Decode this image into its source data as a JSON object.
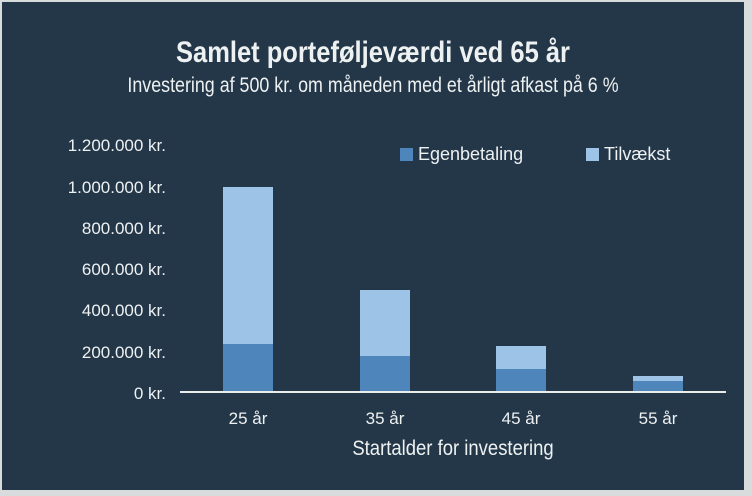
{
  "colors": {
    "page_border": "#d9dcdc",
    "panel_background": "#233748",
    "text": "#eef1f2",
    "axis_line": "#e9eced"
  },
  "header": {
    "title": "Samlet porteføljeværdi ved 65 år",
    "subtitle": "Investering af 500 kr. om måneden med et årligt afkast på 6 %"
  },
  "chart_data": {
    "type": "bar",
    "stacked": true,
    "title": "Samlet porteføljeværdi ved 65 år",
    "subtitle": "Investering af 500 kr. om måneden med et årligt afkast på 6 %",
    "categories": [
      "25 år",
      "35 år",
      "45 år",
      "55 år"
    ],
    "series": [
      {
        "name": "Egenbetaling",
        "color": "#4e86bc",
        "values": [
          240000,
          180000,
          120000,
          60000
        ]
      },
      {
        "name": "Tilvækst",
        "color": "#9dc3e6",
        "values": [
          760000,
          320000,
          110000,
          22000
        ]
      }
    ],
    "totals": [
      1000000,
      500000,
      230000,
      82000
    ],
    "xlabel": "Startalder for investering",
    "ylabel": "",
    "ylim": [
      0,
      1200000
    ],
    "grid": false,
    "legend_position": "top",
    "yticks": [
      {
        "value": 0,
        "label": "0 kr."
      },
      {
        "value": 200000,
        "label": "200.000 kr."
      },
      {
        "value": 400000,
        "label": "400.000 kr."
      },
      {
        "value": 600000,
        "label": "600.000 kr."
      },
      {
        "value": 800000,
        "label": "800.000 kr."
      },
      {
        "value": 1000000,
        "label": "1.000.000 kr."
      },
      {
        "value": 1200000,
        "label": "1.200.000 kr."
      }
    ]
  }
}
